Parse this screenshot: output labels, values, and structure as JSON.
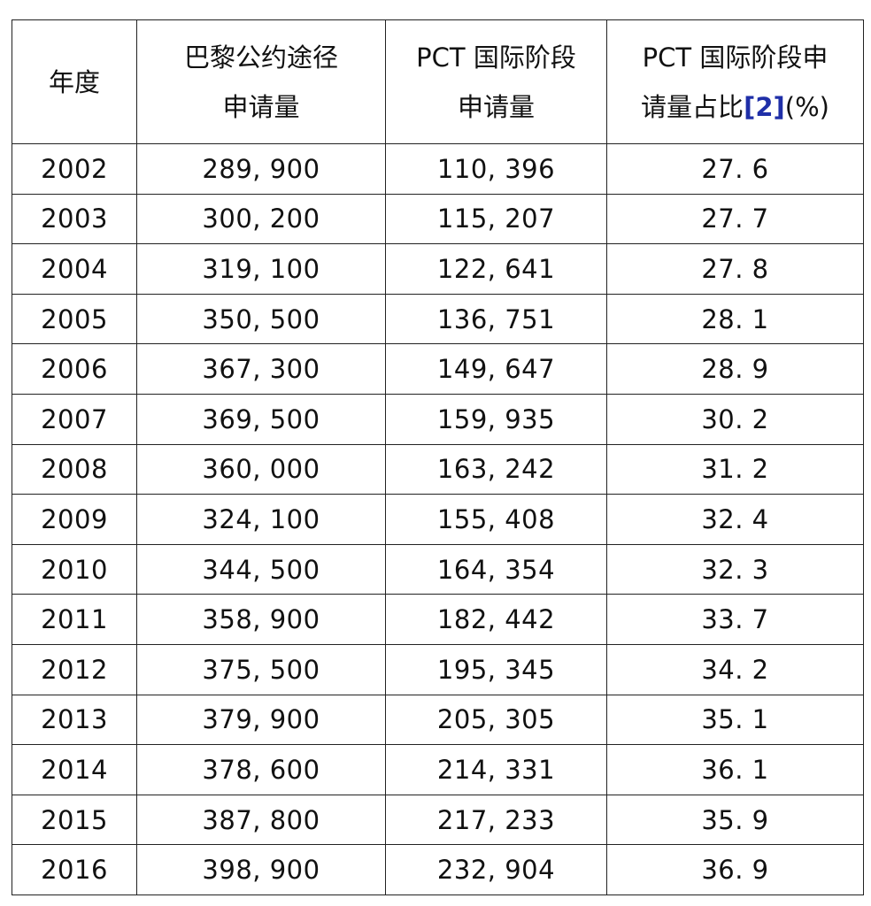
{
  "table": {
    "headers": {
      "year": {
        "line1": "年度"
      },
      "paris": {
        "line1": "巴黎公约途径",
        "line2": "申请量"
      },
      "pct": {
        "line1": "PCT 国际阶段",
        "line2": "申请量"
      },
      "ratio": {
        "line1": "PCT 国际阶段申",
        "line2_a": "请量占比",
        "ref": "[2]",
        "line2_b": "(%)"
      }
    },
    "rows": [
      {
        "year": "2002",
        "paris": "289, 900",
        "pct": "110, 396",
        "ratio": "27. 6"
      },
      {
        "year": "2003",
        "paris": "300, 200",
        "pct": "115, 207",
        "ratio": "27. 7"
      },
      {
        "year": "2004",
        "paris": "319, 100",
        "pct": "122, 641",
        "ratio": "27. 8"
      },
      {
        "year": "2005",
        "paris": "350, 500",
        "pct": "136, 751",
        "ratio": "28. 1"
      },
      {
        "year": "2006",
        "paris": "367, 300",
        "pct": "149, 647",
        "ratio": "28. 9"
      },
      {
        "year": "2007",
        "paris": "369, 500",
        "pct": "159, 935",
        "ratio": "30. 2"
      },
      {
        "year": "2008",
        "paris": "360, 000",
        "pct": "163, 242",
        "ratio": "31. 2"
      },
      {
        "year": "2009",
        "paris": "324, 100",
        "pct": "155, 408",
        "ratio": "32. 4"
      },
      {
        "year": "2010",
        "paris": "344, 500",
        "pct": "164, 354",
        "ratio": "32. 3"
      },
      {
        "year": "2011",
        "paris": "358, 900",
        "pct": "182, 442",
        "ratio": "33. 7"
      },
      {
        "year": "2012",
        "paris": "375, 500",
        "pct": "195, 345",
        "ratio": "34. 2"
      },
      {
        "year": "2013",
        "paris": "379, 900",
        "pct": "205, 305",
        "ratio": "35. 1"
      },
      {
        "year": "2014",
        "paris": "378, 600",
        "pct": "214, 331",
        "ratio": "36. 1"
      },
      {
        "year": "2015",
        "paris": "387, 800",
        "pct": "217, 233",
        "ratio": "35. 9"
      },
      {
        "year": "2016",
        "paris": "398, 900",
        "pct": "232, 904",
        "ratio": "36. 9"
      }
    ]
  },
  "colors": {
    "reference_link": "#1f2fa8",
    "border": "#222222"
  }
}
